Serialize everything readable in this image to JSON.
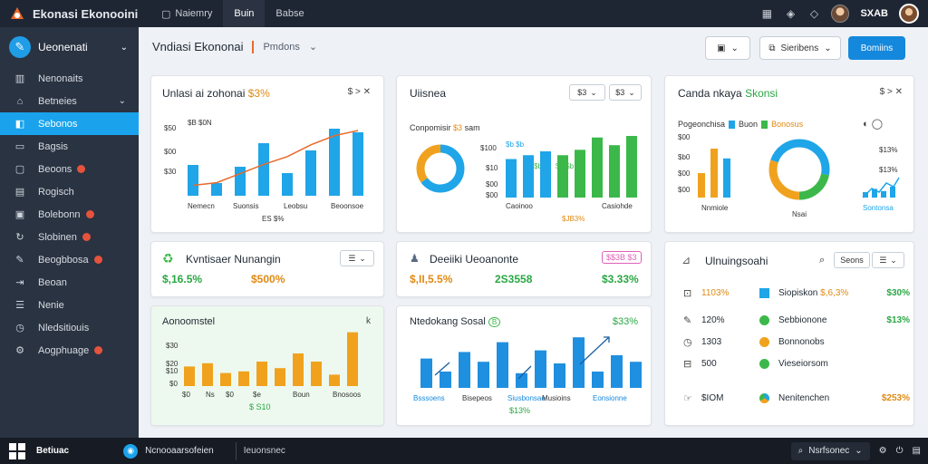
{
  "topbar": {
    "app_title": "Ekonasi Ekonooini",
    "tabs": [
      {
        "label": "Naiemry",
        "active": false
      },
      {
        "label": "Buin",
        "active": true
      },
      {
        "label": "Babse",
        "active": false
      }
    ],
    "user_name": "SXAB"
  },
  "sidebar": {
    "head_label": "Ueonenati",
    "items": [
      {
        "label": "Nenonaits",
        "icon": "building-icon"
      },
      {
        "label": "Betneies",
        "icon": "home-icon",
        "chevron": true
      },
      {
        "label": "Sebonos",
        "icon": "layers-icon",
        "active": true
      },
      {
        "label": "Bagsis",
        "icon": "folder-icon"
      },
      {
        "label": "Beoons",
        "icon": "square-icon",
        "badge": true
      },
      {
        "label": "Rogisch",
        "icon": "document-icon"
      },
      {
        "label": "Bolebonn",
        "icon": "calendar-icon",
        "badge": true
      },
      {
        "label": "Slobinen",
        "icon": "refresh-icon",
        "badge": true
      },
      {
        "label": "Beogbbosa",
        "icon": "pen-icon",
        "badge": true
      },
      {
        "label": "Beoan",
        "icon": "login-icon"
      },
      {
        "label": "Nenie",
        "icon": "list-icon"
      },
      {
        "label": "Nledsitiouis",
        "icon": "clock-icon"
      },
      {
        "label": "Aogphuage",
        "icon": "gear-icon",
        "badge": true
      }
    ]
  },
  "header": {
    "title": "Vndiasi Ekononai",
    "subtitle": "Pmdons",
    "filter_label": "Sieribens",
    "primary_label": "Bomiins"
  },
  "colors": {
    "blue": "#1fa5e8",
    "orange": "#f0a21e",
    "green": "#3cb84a",
    "accent": "#e86a2c"
  },
  "card1": {
    "title": "Unlasi ai zohonai",
    "value": "$3%",
    "ctrl": "$ >",
    "labels": {
      "l1": "$B $0N",
      "y1": "$50",
      "y2": "$00",
      "y3": "$30"
    },
    "x_labels": [
      "Nemecn",
      "Suonsis",
      "Leobsu",
      "Beoonsoe"
    ],
    "x_sub": "ES $%",
    "chart_data": {
      "type": "bar",
      "categories": [
        "1",
        "2",
        "3",
        "4",
        "5",
        "6",
        "7",
        "8"
      ],
      "values": [
        34,
        14,
        32,
        58,
        25,
        50,
        74,
        70
      ],
      "line": [
        16,
        20,
        34,
        48,
        60,
        78,
        92,
        100
      ]
    }
  },
  "card2": {
    "title": "Uiisnea",
    "sel1": "$3",
    "sel2": "$3",
    "donut_label": "Conpomisir",
    "donut_value": "$3",
    "donut_tail": "sam",
    "y_labels": [
      "$100",
      "$10",
      "$00",
      "$00"
    ],
    "top_labels": [
      "$b $b",
      "$3 $b",
      "$0 $b"
    ],
    "x_labels": [
      "Caoinoo",
      "Casiohde"
    ],
    "x_sub": "$JB3%",
    "chart_data": {
      "type": "bar",
      "categories": [
        "1",
        "2",
        "3",
        "4",
        "5",
        "6",
        "7",
        "8"
      ],
      "series": [
        {
          "values": [
            50,
            55,
            60,
            0,
            0,
            0,
            0,
            0
          ]
        },
        {
          "values": [
            0,
            0,
            0,
            55,
            62,
            78,
            68,
            80
          ]
        }
      ],
      "donut": [
        65,
        35
      ]
    }
  },
  "card3": {
    "title": "Canda nkaya",
    "title_highlight": "Skonsi",
    "ctrl": "$ >",
    "legend_label": "Pogeonchisa",
    "legend_b": "Buon",
    "legend_c": "Bonosus",
    "y_labels": [
      "$00",
      "$b0",
      "$00",
      "$00"
    ],
    "right_labels": [
      "$13%",
      "$13%"
    ],
    "x_labels": [
      "Nnmiole",
      "Nsai",
      "Sontonsa"
    ],
    "chart_data": {
      "type": "bar",
      "categories": [
        "1",
        "2",
        "3"
      ],
      "values": [
        30,
        60,
        48
      ],
      "donut": [
        28,
        22,
        30,
        20
      ]
    }
  },
  "card4": {
    "title": "Kvntisaer Nunangin",
    "value1": "$,16.5%",
    "value2": "$500%"
  },
  "card5": {
    "title": "Deeiiki Ueoanonte",
    "badge": "$$3B $3",
    "value1": "$,II,5.5%",
    "value2": "2S3558",
    "value3": "$3.33%"
  },
  "card6": {
    "title": "Ulnuingsoahi",
    "sel": "Seons",
    "rows": [
      {
        "icon": "chart-icon",
        "value": "1103%",
        "marker": "sq",
        "color": "#1fa5e8",
        "name": "Siopiskon",
        "extra": "$,6,3%",
        "pct": "$30%"
      },
      {
        "icon": "pen-icon",
        "value": "120%",
        "marker": "dot",
        "color": "#3cb84a",
        "name": "Sebbionone",
        "pct": "$13%"
      },
      {
        "icon": "clock-icon",
        "value": "1303",
        "marker": "dot",
        "color": "#f0a21e",
        "name": "Bonnonobs",
        "pct": ""
      },
      {
        "icon": "box-icon",
        "value": "500",
        "marker": "dot",
        "color": "#3cb84a",
        "name": "Vieseiorsom",
        "pct": ""
      }
    ],
    "footer": {
      "value": "$IOM",
      "name": "Nenitenchen",
      "pct": "$253%"
    }
  },
  "card7": {
    "title": "Aonoomstel",
    "ctrl": "k",
    "y_labels": [
      "$30",
      "$20",
      "$10",
      "$0"
    ],
    "x_labels": [
      "$0",
      "Ns",
      "$0",
      "$e",
      "Boun",
      "Bnosoos"
    ],
    "x_sub": "$ S10",
    "chart_data": {
      "type": "bar",
      "categories": [
        "1",
        "2",
        "3",
        "4",
        "5",
        "6",
        "7",
        "8",
        "9",
        "10"
      ],
      "values": [
        24,
        28,
        16,
        18,
        30,
        22,
        40,
        30,
        14,
        66
      ]
    }
  },
  "card8": {
    "title": "Ntedokang Sosal",
    "title_badge": "B",
    "value": "$33%",
    "x_labels": [
      "Bsssoens",
      "Bisepeos",
      "Siusbonsae",
      "Musioins",
      "Eonsionne"
    ],
    "x_sub": "$13%",
    "chart_data": {
      "type": "bar",
      "categories": [
        "1",
        "2",
        "3",
        "4",
        "5",
        "6",
        "7",
        "8",
        "9",
        "10",
        "11",
        "12"
      ],
      "values": [
        36,
        20,
        44,
        32,
        56,
        18,
        46,
        30,
        62,
        20,
        40,
        32
      ]
    }
  },
  "taskbar": {
    "label": "Betiuac",
    "app_label": "Ncnooaarsofeien",
    "search_text": "Ieuonsnec",
    "search_box": "Nsrfsonec"
  }
}
